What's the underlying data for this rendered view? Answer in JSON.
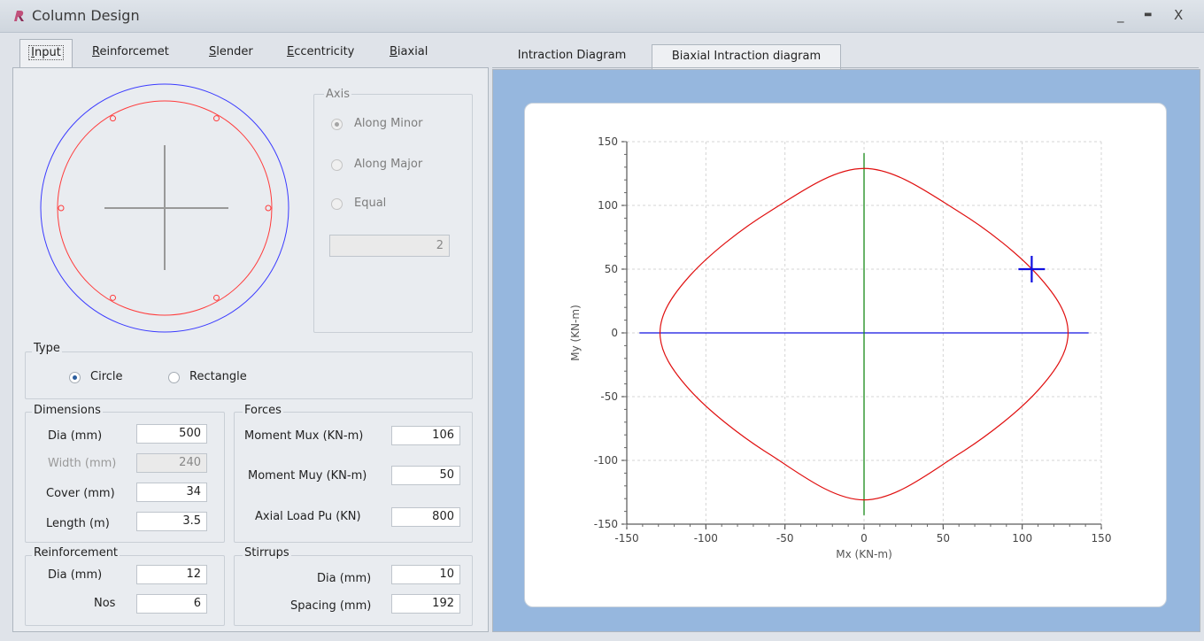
{
  "window": {
    "title": "Column Design",
    "minimize": "_",
    "maximize": "▬",
    "close": "X"
  },
  "left_tabs": [
    {
      "label": "Input",
      "key": "I",
      "rest": "nput"
    },
    {
      "label": "Reinforcemet",
      "key": "R",
      "rest": "einforcemet"
    },
    {
      "label": "Slender",
      "key": "S",
      "rest": "lender"
    },
    {
      "label": "Eccentricity",
      "key": "E",
      "rest": "ccentricity"
    },
    {
      "label": "Biaxial",
      "key": "B",
      "rest": "iaxial"
    }
  ],
  "right_tabs": [
    {
      "label": "Intraction Diagram"
    },
    {
      "label": "Biaxial Intraction diagram"
    }
  ],
  "axis_group": {
    "title": "Axis",
    "options": [
      "Along Minor",
      "Along Major",
      "Equal"
    ],
    "selected": "Along Minor",
    "value": "2"
  },
  "type_group": {
    "title": "Type",
    "options": [
      "Circle",
      "Rectangle"
    ],
    "selected": "Circle"
  },
  "dimensions": {
    "title": "Dimensions",
    "dia_label": "Dia  (mm)",
    "dia": "500",
    "width_label": "Width (mm)",
    "width": "240",
    "cover_label": "Cover (mm)",
    "cover": "34",
    "length_label": "Length  (m)",
    "length": "3.5"
  },
  "forces": {
    "title": "Forces",
    "mux_label": "Moment Mux  (KN-m)",
    "mux": "106",
    "muy_label": "Moment Muy (KN-m)",
    "muy": "50",
    "pu_label": "Axial Load  Pu (KN)",
    "pu": "800"
  },
  "reinforcement": {
    "title": "Reinforcement",
    "dia_label": "Dia (mm)",
    "dia": "12",
    "nos_label": "Nos",
    "nos": "6"
  },
  "stirrups": {
    "title": "Stirrups",
    "dia_label": "Dia  (mm)",
    "dia": "10",
    "spacing_label": "Spacing (mm)",
    "spacing": "192"
  },
  "colors": {
    "outer": "#3b3bff",
    "inner": "#ff3b3b",
    "curve": "#e01010",
    "yaxis_line": "#188a18",
    "xaxis_line": "#1010e0",
    "point": "#1010e0"
  },
  "chart_data": {
    "type": "line",
    "xlabel": "Mx (KN-m)",
    "ylabel": "My (KN-m)",
    "xlim": [
      -150,
      150
    ],
    "ylim": [
      -150,
      150
    ],
    "xticks": [
      -150,
      -100,
      -50,
      0,
      50,
      100,
      150
    ],
    "yticks": [
      -150,
      -100,
      -50,
      0,
      50,
      100,
      150
    ],
    "grid": true,
    "series": [
      {
        "values": [
          [
            0,
            129
          ],
          [
            -60,
            95
          ],
          [
            -110,
            45
          ],
          [
            -129,
            0
          ],
          [
            -110,
            -45
          ],
          [
            -60,
            -95
          ],
          [
            0,
            -131
          ],
          [
            60,
            -95
          ],
          [
            110,
            -45
          ],
          [
            129,
            0
          ],
          [
            110,
            45
          ],
          [
            60,
            95
          ],
          [
            0,
            129
          ]
        ]
      }
    ],
    "point": [
      106,
      50
    ],
    "x_line": [
      -142,
      142
    ],
    "y_line": [
      -143,
      141
    ]
  }
}
